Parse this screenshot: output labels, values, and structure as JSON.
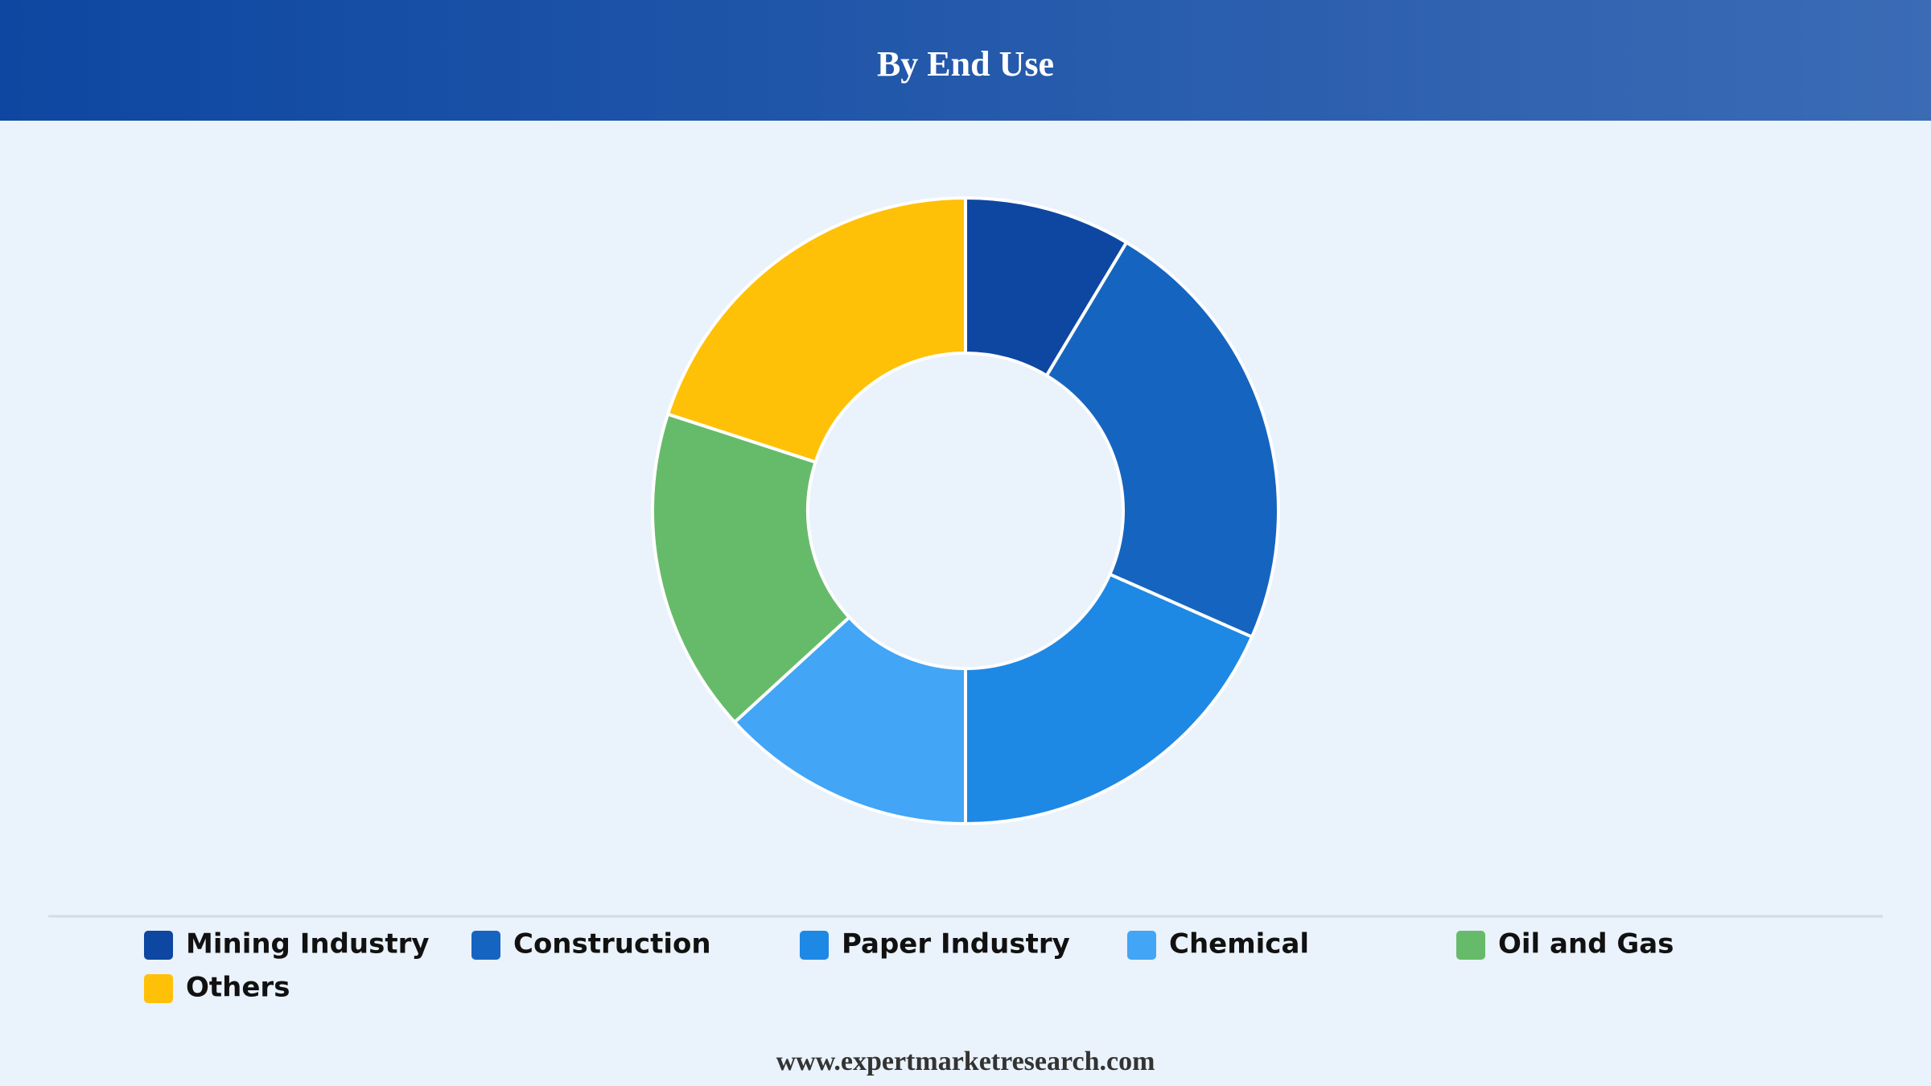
{
  "chart_data": {
    "type": "pie",
    "title": "By End Use",
    "categories": [
      "Mining Industry",
      "Construction",
      "Paper Industry",
      "Chemical",
      "Oil and Gas",
      "Others"
    ],
    "values": [
      8.6,
      23,
      18.4,
      13.2,
      16.8,
      20
    ],
    "colors": [
      "#0d47a1",
      "#1565c0",
      "#1e88e5",
      "#42a5f5",
      "#66bb6a",
      "#ffc107"
    ]
  },
  "footer": "www.expertmarketresearch.com"
}
